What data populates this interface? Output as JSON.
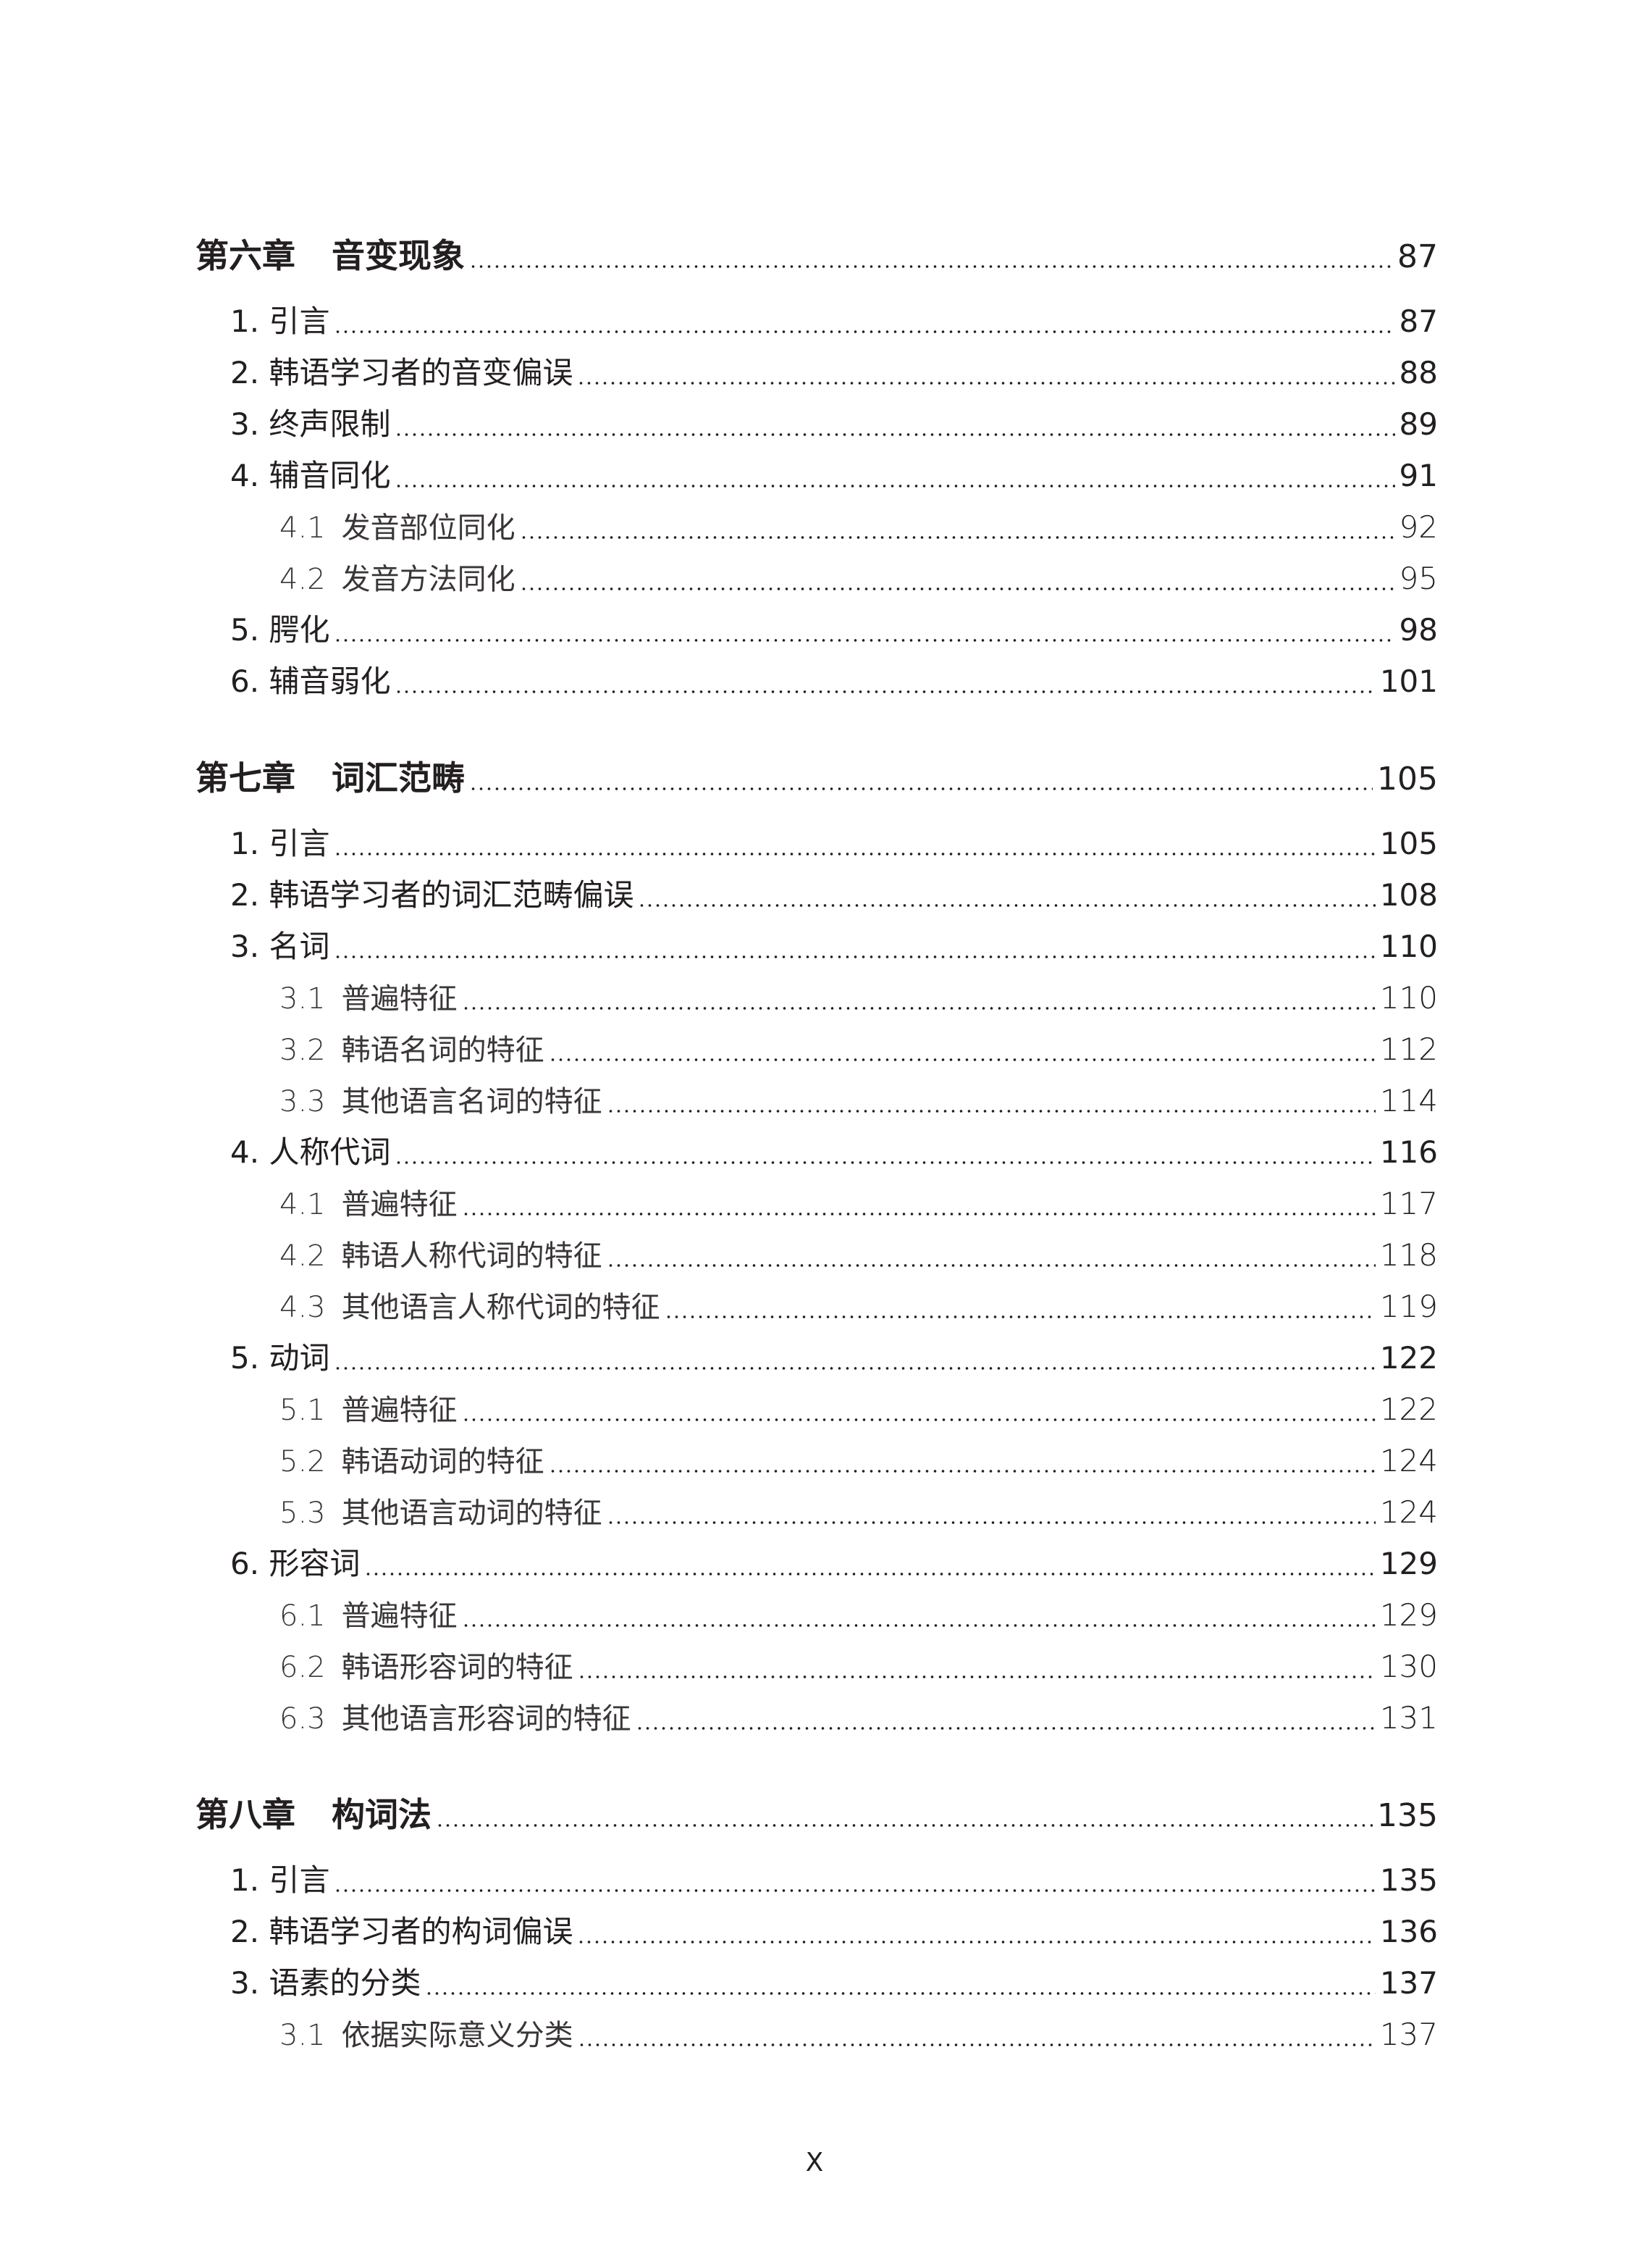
{
  "chapters": [
    {
      "num": "第六章",
      "title": "音变现象",
      "page": "87",
      "items": [
        {
          "level": 1,
          "num": "1.",
          "title": "引言",
          "page": "87"
        },
        {
          "level": 1,
          "num": "2.",
          "title": "韩语学习者的音变偏误",
          "page": "88"
        },
        {
          "level": 1,
          "num": "3.",
          "title": "终声限制",
          "page": "89"
        },
        {
          "level": 1,
          "num": "4.",
          "title": "辅音同化",
          "page": "91"
        },
        {
          "level": 2,
          "num": "4.1",
          "title": "发音部位同化",
          "page": "92"
        },
        {
          "level": 2,
          "num": "4.2",
          "title": "发音方法同化",
          "page": "95"
        },
        {
          "level": 1,
          "num": "5.",
          "title": "腭化",
          "page": "98"
        },
        {
          "level": 1,
          "num": "6.",
          "title": "辅音弱化",
          "page": "101"
        }
      ]
    },
    {
      "num": "第七章",
      "title": "词汇范畴",
      "page": "105",
      "items": [
        {
          "level": 1,
          "num": "1.",
          "title": "引言",
          "page": "105"
        },
        {
          "level": 1,
          "num": "2.",
          "title": "韩语学习者的词汇范畴偏误",
          "page": "108"
        },
        {
          "level": 1,
          "num": "3.",
          "title": "名词",
          "page": "110"
        },
        {
          "level": 2,
          "num": "3.1",
          "title": "普遍特征",
          "page": "110"
        },
        {
          "level": 2,
          "num": "3.2",
          "title": "韩语名词的特征",
          "page": "112"
        },
        {
          "level": 2,
          "num": "3.3",
          "title": "其他语言名词的特征",
          "page": "114"
        },
        {
          "level": 1,
          "num": "4.",
          "title": "人称代词",
          "page": "116"
        },
        {
          "level": 2,
          "num": "4.1",
          "title": "普遍特征",
          "page": "117"
        },
        {
          "level": 2,
          "num": "4.2",
          "title": "韩语人称代词的特征",
          "page": "118"
        },
        {
          "level": 2,
          "num": "4.3",
          "title": "其他语言人称代词的特征",
          "page": "119"
        },
        {
          "level": 1,
          "num": "5.",
          "title": "动词",
          "page": "122"
        },
        {
          "level": 2,
          "num": "5.1",
          "title": "普遍特征",
          "page": "122"
        },
        {
          "level": 2,
          "num": "5.2",
          "title": "韩语动词的特征",
          "page": "124"
        },
        {
          "level": 2,
          "num": "5.3",
          "title": "其他语言动词的特征",
          "page": "124"
        },
        {
          "level": 1,
          "num": "6.",
          "title": "形容词",
          "page": "129"
        },
        {
          "level": 2,
          "num": "6.1",
          "title": "普遍特征",
          "page": "129"
        },
        {
          "level": 2,
          "num": "6.2",
          "title": "韩语形容词的特征",
          "page": "130"
        },
        {
          "level": 2,
          "num": "6.3",
          "title": "其他语言形容词的特征",
          "page": "131"
        }
      ]
    },
    {
      "num": "第八章",
      "title": "构词法",
      "page": "135",
      "items": [
        {
          "level": 1,
          "num": "1.",
          "title": "引言",
          "page": "135"
        },
        {
          "level": 1,
          "num": "2.",
          "title": "韩语学习者的构词偏误",
          "page": "136"
        },
        {
          "level": 1,
          "num": "3.",
          "title": "语素的分类",
          "page": "137"
        },
        {
          "level": 2,
          "num": "3.1",
          "title": "依据实际意义分类",
          "page": "137"
        }
      ]
    }
  ],
  "folio": "X"
}
